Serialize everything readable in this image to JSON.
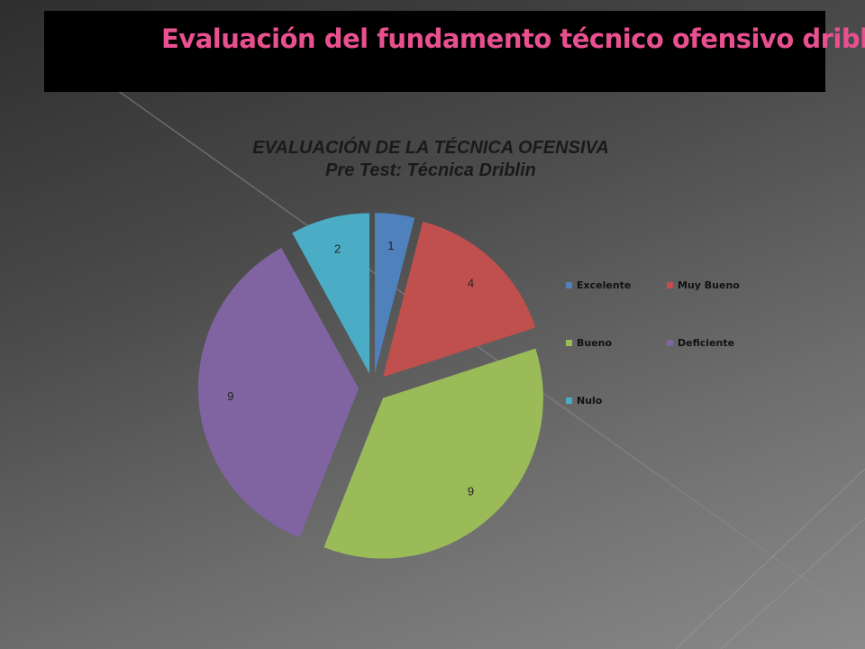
{
  "slide": {
    "title": "Evaluación del fundamento técnico ofensivo driblin",
    "title_color": "#e8508f",
    "header_bar_color": "#000000"
  },
  "chart_data": {
    "type": "pie",
    "exploded": true,
    "title": "EVALUACIÓN DE LA TÉCNICA OFENSIVA",
    "subtitle": "Pre Test: Técnica Driblin",
    "legend_position": "right",
    "categories": [
      "Excelente",
      "Muy Bueno",
      "Bueno",
      "Deficiente",
      "Nulo"
    ],
    "values": [
      1,
      4,
      9,
      9,
      2
    ],
    "colors": [
      "#4f81bd",
      "#c0504d",
      "#9bbb59",
      "#8064a2",
      "#4bacc6"
    ],
    "data_labels": [
      "1",
      "4",
      "9",
      "9",
      "2"
    ]
  }
}
